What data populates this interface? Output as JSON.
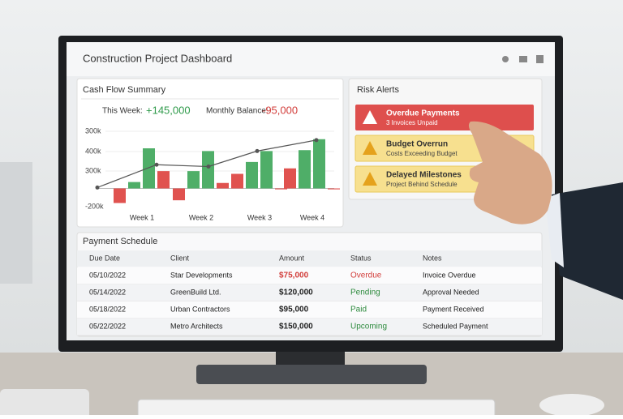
{
  "header": {
    "title": "Construction Project Dashboard"
  },
  "cash_flow": {
    "title": "Cash Flow Summary",
    "this_week_label": "This Week:",
    "this_week_value": "+145,000",
    "balance_label": "Monthly Balance:",
    "balance_value": "-95,000",
    "axis_labels": [
      "300k",
      "400k",
      "300k",
      "-200k"
    ],
    "ylim": [
      -100,
      300
    ],
    "inflow_color": "#4fae68",
    "outflow_color": "#e0524f",
    "line_color": "#555555",
    "weeks": [
      {
        "label": "Week 1",
        "inflow": [
          35,
          220
        ],
        "outflow": [
          -80,
          95
        ]
      },
      {
        "label": "Week 2",
        "inflow": [
          95,
          205
        ],
        "outflow": [
          -65,
          30
        ]
      },
      {
        "label": "Week 3",
        "inflow": [
          145,
          205
        ],
        "outflow": [
          80,
          -5
        ]
      },
      {
        "label": "Week 4",
        "inflow": [
          210,
          270
        ],
        "outflow": [
          110,
          -5
        ]
      }
    ],
    "line": [
      5,
      130,
      120,
      205,
      265
    ]
  },
  "risk_alerts": {
    "title": "Risk Alerts",
    "items": [
      {
        "title": "Overdue Payments",
        "detail": "3 Invoices Unpaid"
      },
      {
        "title": "Budget Overrun",
        "detail": "Costs Exceeding Budget"
      },
      {
        "title": "Delayed Milestones",
        "detail": "Project Behind Schedule"
      }
    ]
  },
  "payment_schedule": {
    "title": "Payment Schedule",
    "columns": [
      "Due Date",
      "Client",
      "Amount",
      "Status",
      "Notes"
    ],
    "rows": [
      [
        "05/10/2022",
        "Star Developments",
        "$75,000",
        "Overdue",
        "Invoice Overdue"
      ],
      [
        "05/14/2022",
        "GreenBuild Ltd.",
        "$120,000",
        "Pending",
        "Approval Needed"
      ],
      [
        "05/18/2022",
        "Urban Contractors",
        "$95,000",
        "Paid",
        "Payment Received"
      ],
      [
        "05/22/2022",
        "Metro Architects",
        "$150,000",
        "Upcoming",
        "Scheduled Payment"
      ]
    ]
  }
}
